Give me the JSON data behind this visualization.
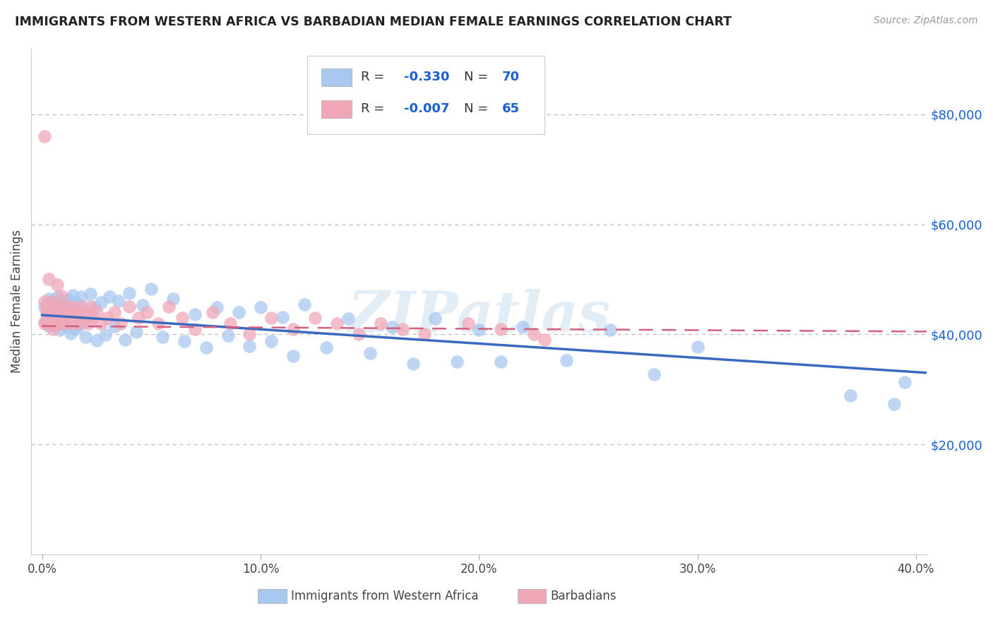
{
  "title": "IMMIGRANTS FROM WESTERN AFRICA VS BARBADIAN MEDIAN FEMALE EARNINGS CORRELATION CHART",
  "source": "Source: ZipAtlas.com",
  "ylabel": "Median Female Earnings",
  "xlim": [
    -0.005,
    0.405
  ],
  "ylim": [
    0,
    92000
  ],
  "yticks": [
    20000,
    40000,
    60000,
    80000
  ],
  "ytick_labels": [
    "$20,000",
    "$40,000",
    "$60,000",
    "$80,000"
  ],
  "xticks": [
    0.0,
    0.1,
    0.2,
    0.3,
    0.4
  ],
  "xtick_labels": [
    "0.0%",
    "10.0%",
    "20.0%",
    "30.0%",
    "40.0%"
  ],
  "series1_label": "Immigrants from Western Africa",
  "series1_color": "#a8c8f0",
  "series1_R": "-0.330",
  "series1_N": "70",
  "series2_label": "Barbadians",
  "series2_color": "#f0a8b8",
  "series2_R": "-0.007",
  "series2_N": "65",
  "legend_R_color": "#1a5fd4",
  "trendline1_color": "#3a6abf",
  "trendline2_color": "#d46080",
  "background_color": "#ffffff",
  "watermark": "ZIPatlas",
  "trendline1_x0": 0.0,
  "trendline1_y0": 43500,
  "trendline1_x1": 0.405,
  "trendline1_y1": 33000,
  "trendline2_x0": 0.0,
  "trendline2_y0": 41500,
  "trendline2_x1": 0.405,
  "trendline2_y1": 40500
}
